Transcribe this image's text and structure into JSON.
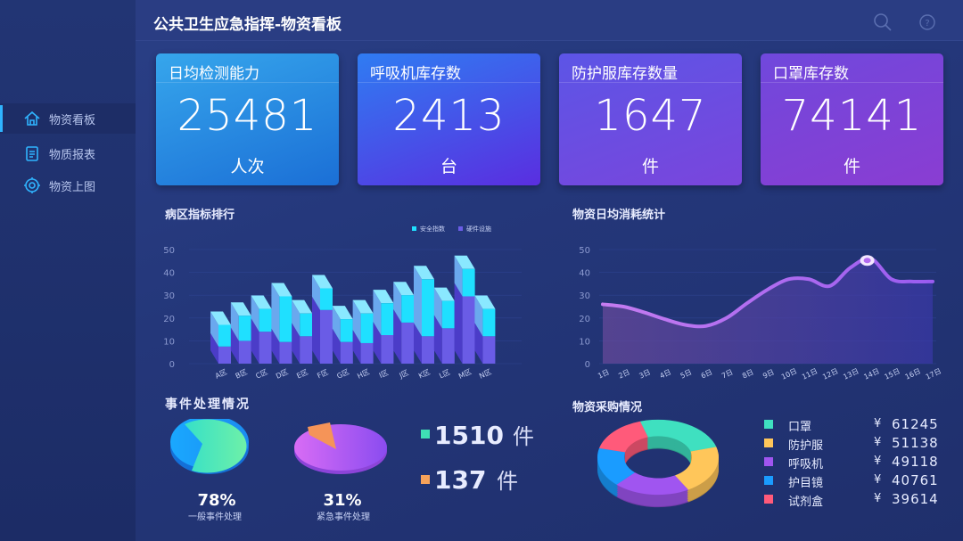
{
  "header": {
    "title": "公共卫生应急指挥-物资看板",
    "icons": [
      "search-icon",
      "help-icon"
    ]
  },
  "sidebar": {
    "items": [
      {
        "label": "物资看板",
        "icon": "home-icon",
        "active": true
      },
      {
        "label": "物质报表",
        "icon": "clipboard-icon"
      },
      {
        "label": "物资上图",
        "icon": "target-icon"
      }
    ]
  },
  "cards": [
    {
      "label": "日均检测能力",
      "value": "25481",
      "unit": "人次"
    },
    {
      "label": "呼吸机库存数",
      "value": "2413",
      "unit": "台"
    },
    {
      "label": "防护服库存数量",
      "value": "1647",
      "unit": "件"
    },
    {
      "label": "口罩库存数",
      "value": "74141",
      "unit": "件"
    }
  ],
  "chart_data": [
    {
      "type": "bar",
      "title": "病区指标排行",
      "stacked": true,
      "categories": [
        "A区",
        "B区",
        "C区",
        "D区",
        "E区",
        "F区",
        "G区",
        "H区",
        "I区",
        "J区",
        "K区",
        "L区",
        "M区",
        "N区"
      ],
      "ylim": [
        0,
        50
      ],
      "yticks": [
        "0",
        "10",
        "20",
        "30",
        "40",
        "50"
      ],
      "legend_position": "top-right",
      "series": [
        {
          "name": "硬件设施",
          "color": "#6a5ce6",
          "values": [
            7.5,
            10,
            14,
            9.5,
            12,
            23.5,
            9.5,
            9,
            12.5,
            18,
            12,
            15.5,
            29.5,
            12
          ]
        },
        {
          "name": "安全指数",
          "color": "#1fe0ff",
          "values": [
            9.5,
            11,
            10,
            20,
            10,
            9.5,
            10,
            13,
            14,
            12,
            25,
            12,
            12,
            12
          ]
        }
      ]
    },
    {
      "type": "area",
      "title": "物资日均消耗统计",
      "categories": [
        "1日",
        "2日",
        "3日",
        "4日",
        "5日",
        "6日",
        "7日",
        "8日",
        "9日",
        "10日",
        "11日",
        "12日",
        "13日",
        "14日",
        "15日",
        "16日",
        "17日"
      ],
      "values": [
        26,
        25,
        22.5,
        19.5,
        17,
        16.5,
        20,
        26.5,
        32.5,
        37,
        37,
        34,
        42,
        46,
        37,
        36,
        36
      ],
      "ylim": [
        0,
        50
      ],
      "yticks": [
        "0",
        "10",
        "20",
        "30",
        "40",
        "50"
      ],
      "highlight": "14日",
      "color": "#b36af0"
    }
  ],
  "events": {
    "title": "事件处理情况",
    "pies": [
      {
        "percent": "78%",
        "label": "一般事件处理",
        "value": 78
      },
      {
        "percent": "31%",
        "label": "紧急事件处理",
        "value": 31
      }
    ],
    "counts": [
      {
        "value": "1510",
        "unit": "件",
        "color": "#3fe0b5"
      },
      {
        "value": "137",
        "unit": "件",
        "color": "#f7a25a"
      }
    ]
  },
  "purchase": {
    "title": "物资采购情况",
    "currency": "¥",
    "items": [
      {
        "name": "口罩",
        "amount": "61245",
        "color": "#3fe0c0",
        "value": 61245
      },
      {
        "name": "防护服",
        "amount": "51138",
        "color": "#ffc65a",
        "value": 51138
      },
      {
        "name": "呼吸机",
        "amount": "49118",
        "color": "#a055f0",
        "value": 49118
      },
      {
        "name": "护目镜",
        "amount": "40761",
        "color": "#1a9cff",
        "value": 40761
      },
      {
        "name": "试剂盒",
        "amount": "39614",
        "color": "#ff5a7a",
        "value": 39614
      }
    ]
  }
}
